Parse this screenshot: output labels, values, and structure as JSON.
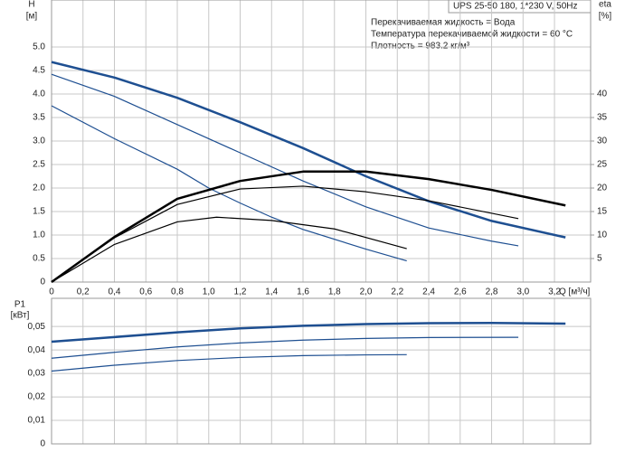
{
  "chart_data": [
    {
      "type": "line",
      "title": "UPS 25-50 180, 1*230 V, 50Hz",
      "annotations": [
        "Перекачиваемая жидкость = Вода",
        "Температура перекачиваемой жидкости = 60 °C",
        "Плотность = 983.2 кг/м³"
      ],
      "y_label": "H",
      "y_unit": "[м]",
      "y2_label": "eta",
      "y2_unit": "[%]",
      "x_label": "Q [м³/ч]",
      "grid": true,
      "xlim": [
        0,
        3.43
      ],
      "xticks": [
        0,
        {
          "value": 0.2,
          "label": "0,2"
        },
        {
          "value": 0.4,
          "label": "0,4"
        },
        {
          "value": 0.6,
          "label": "0,6"
        },
        {
          "value": 0.8,
          "label": "0,8"
        },
        {
          "value": 1,
          "label": "1,0"
        },
        {
          "value": 1.2,
          "label": "1,2"
        },
        {
          "value": 1.4,
          "label": "1,4"
        },
        {
          "value": 1.6,
          "label": "1,6"
        },
        {
          "value": 1.8,
          "label": "1,8"
        },
        {
          "value": 2,
          "label": "2,0"
        },
        {
          "value": 2.2,
          "label": "2,2"
        },
        {
          "value": 2.4,
          "label": "2,4"
        },
        {
          "value": 2.6,
          "label": "2,6"
        },
        {
          "value": 2.8,
          "label": "2,8"
        },
        {
          "value": 3,
          "label": "3,0"
        },
        {
          "value": 3.2,
          "label": "3,2"
        }
      ],
      "ylim": [
        0,
        6
      ],
      "yticks": [
        0,
        0.5,
        {
          "value": 1,
          "label": "1.0"
        },
        1.5,
        {
          "value": 2,
          "label": "2.0"
        },
        2.5,
        {
          "value": 3,
          "label": "3.0"
        },
        3.5,
        {
          "value": 4,
          "label": "4.0"
        },
        4.5,
        {
          "value": 5,
          "label": "5.0"
        }
      ],
      "y2lim": [
        0,
        60
      ],
      "y2ticks": [
        5,
        10,
        15,
        20,
        25,
        30,
        35,
        40
      ],
      "series": [
        {
          "color": "#1e4f91",
          "line_width": 2.5,
          "x": [
            0,
            0.4,
            0.8,
            1.2,
            1.6,
            2.0,
            2.4,
            2.8,
            3.27
          ],
          "values": [
            4.68,
            4.35,
            3.92,
            3.4,
            2.85,
            2.25,
            1.72,
            1.3,
            0.95
          ]
        },
        {
          "color": "#1e4f91",
          "line_width": 1.2,
          "x": [
            0,
            0.4,
            0.8,
            1.2,
            1.6,
            2.0,
            2.4,
            2.8,
            2.97
          ],
          "values": [
            4.42,
            3.95,
            3.35,
            2.75,
            2.15,
            1.6,
            1.15,
            0.87,
            0.77
          ]
        },
        {
          "color": "#1e4f91",
          "line_width": 1.2,
          "x": [
            0,
            0.4,
            0.8,
            1.0,
            1.2,
            1.4,
            1.6,
            2.0,
            2.26
          ],
          "values": [
            3.75,
            3.05,
            2.4,
            2.0,
            1.68,
            1.38,
            1.12,
            0.7,
            0.45
          ]
        },
        {
          "color": "#000000",
          "line_width": 2.5,
          "axis": "y2",
          "x": [
            0,
            0.4,
            0.8,
            1.2,
            1.6,
            2.0,
            2.4,
            2.8,
            3.27
          ],
          "values": [
            0,
            9.6,
            17.7,
            21.5,
            23.5,
            23.5,
            21.9,
            19.6,
            16.3
          ]
        },
        {
          "color": "#000000",
          "line_width": 1.2,
          "axis": "y2",
          "x": [
            0,
            0.4,
            0.8,
            1.2,
            1.6,
            2.0,
            2.4,
            2.97
          ],
          "values": [
            0,
            9.4,
            16.5,
            19.8,
            20.4,
            19.2,
            17.3,
            13.5
          ]
        },
        {
          "color": "#000000",
          "line_width": 1.2,
          "axis": "y2",
          "x": [
            0,
            0.4,
            0.8,
            1.05,
            1.4,
            1.8,
            2.26
          ],
          "values": [
            0,
            8,
            12.8,
            13.8,
            13.1,
            11.3,
            7.1
          ]
        }
      ]
    },
    {
      "type": "line",
      "y_label": "P1",
      "y_unit": "[кВт]",
      "grid": true,
      "xlim": [
        0,
        3.43
      ],
      "ylim": [
        0,
        0.062
      ],
      "yticks": [
        0,
        {
          "value": 0.01,
          "label": "0,01"
        },
        {
          "value": 0.02,
          "label": "0,02"
        },
        {
          "value": 0.03,
          "label": "0,03"
        },
        {
          "value": 0.04,
          "label": "0,04"
        },
        {
          "value": 0.05,
          "label": "0,05"
        }
      ],
      "series": [
        {
          "color": "#1e4f91",
          "line_width": 2.5,
          "x": [
            0,
            0.4,
            0.8,
            1.2,
            1.6,
            2.0,
            2.4,
            2.8,
            3.27
          ],
          "values": [
            0.0435,
            0.0455,
            0.0475,
            0.0492,
            0.0503,
            0.051,
            0.0514,
            0.0515,
            0.0512
          ]
        },
        {
          "color": "#1e4f91",
          "line_width": 1.2,
          "x": [
            0,
            0.4,
            0.8,
            1.2,
            1.6,
            2.0,
            2.4,
            2.97
          ],
          "values": [
            0.0365,
            0.039,
            0.0413,
            0.043,
            0.0442,
            0.0449,
            0.0453,
            0.0454
          ]
        },
        {
          "color": "#1e4f91",
          "line_width": 1.2,
          "x": [
            0,
            0.4,
            0.8,
            1.2,
            1.6,
            2.0,
            2.26
          ],
          "values": [
            0.031,
            0.0335,
            0.0355,
            0.0368,
            0.0376,
            0.0379,
            0.038
          ]
        }
      ]
    }
  ]
}
